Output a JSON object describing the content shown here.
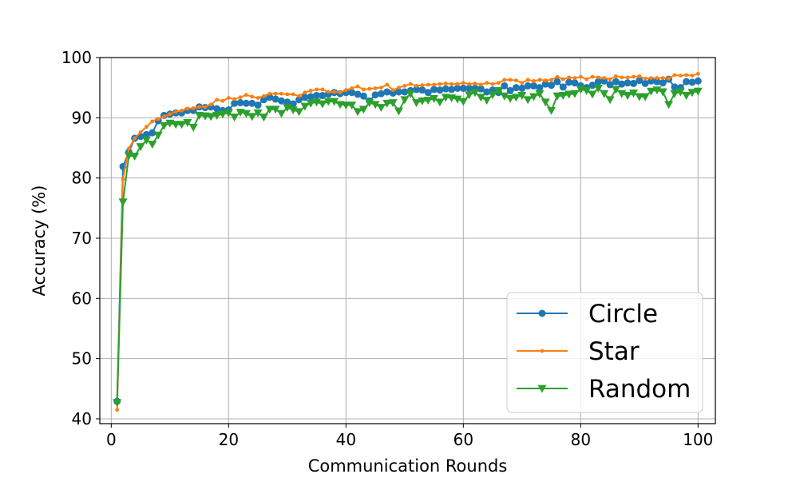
{
  "chart_data": {
    "type": "line",
    "title": "",
    "xlabel": "Communication Rounds",
    "ylabel": "Accuracy (%)",
    "xlim": [
      -1.95,
      102.95
    ],
    "ylim": [
      39.2,
      100
    ],
    "xticks": [
      0,
      20,
      40,
      60,
      80,
      100
    ],
    "yticks": [
      40,
      50,
      60,
      70,
      80,
      90,
      100
    ],
    "grid": true,
    "legend_position": "bottom-right",
    "x": [
      1,
      2,
      3,
      4,
      5,
      6,
      7,
      8,
      9,
      10,
      11,
      12,
      13,
      14,
      15,
      16,
      17,
      18,
      19,
      20,
      21,
      22,
      23,
      24,
      25,
      26,
      27,
      28,
      29,
      30,
      31,
      32,
      33,
      34,
      35,
      36,
      37,
      38,
      39,
      40,
      41,
      42,
      43,
      44,
      45,
      46,
      47,
      48,
      49,
      50,
      51,
      52,
      53,
      54,
      55,
      56,
      57,
      58,
      59,
      60,
      61,
      62,
      63,
      64,
      65,
      66,
      67,
      68,
      69,
      70,
      71,
      72,
      73,
      74,
      75,
      76,
      77,
      78,
      79,
      80,
      81,
      82,
      83,
      84,
      85,
      86,
      87,
      88,
      89,
      90,
      91,
      92,
      93,
      94,
      95,
      96,
      97,
      98,
      99,
      100
    ],
    "series": [
      {
        "name": "Circle",
        "color": "#1f77b4",
        "marker": "circle",
        "values": [
          42.9,
          81.9,
          84.3,
          86.6,
          86.9,
          87.2,
          87.5,
          89.5,
          90.4,
          90.6,
          90.8,
          90.8,
          91.2,
          91.2,
          91.8,
          91.7,
          91.8,
          91.5,
          91.2,
          91.3,
          92.4,
          92.5,
          92.4,
          92.4,
          92.1,
          93.0,
          93.4,
          93.1,
          92.8,
          92.6,
          92.3,
          93.0,
          93.4,
          93.5,
          93.7,
          93.7,
          93.9,
          94.2,
          94.0,
          94.2,
          94.2,
          93.9,
          93.6,
          92.8,
          93.8,
          94.0,
          94.3,
          94.1,
          94.3,
          94.3,
          94.5,
          94.7,
          94.6,
          94.2,
          94.7,
          94.6,
          94.8,
          94.7,
          94.9,
          94.9,
          94.9,
          94.9,
          94.8,
          94.3,
          94.6,
          94.2,
          95.3,
          94.5,
          95.0,
          94.9,
          95.3,
          95.3,
          95.0,
          95.6,
          95.4,
          96.0,
          95.1,
          95.9,
          95.8,
          95.3,
          95.0,
          95.4,
          96.0,
          96.1,
          95.5,
          96.0,
          95.6,
          95.8,
          95.7,
          96.2,
          95.7,
          96.1,
          96.0,
          95.8,
          96.4,
          95.1,
          95.0,
          96.0,
          95.9,
          96.1
        ]
      },
      {
        "name": "Star",
        "color": "#ff7f0e",
        "marker": "point",
        "values": [
          41.5,
          79.8,
          84.9,
          86.6,
          87.6,
          88.5,
          89.4,
          89.8,
          90.2,
          90.6,
          91.0,
          91.2,
          91.5,
          91.6,
          91.8,
          91.8,
          92.2,
          93.0,
          92.8,
          93.3,
          93.1,
          93.4,
          93.8,
          93.5,
          93.3,
          93.6,
          94.0,
          94.0,
          94.0,
          93.9,
          93.9,
          93.6,
          94.2,
          94.5,
          94.7,
          94.7,
          94.3,
          94.3,
          94.2,
          94.6,
          94.9,
          95.2,
          94.7,
          94.8,
          94.9,
          95.0,
          95.5,
          94.6,
          95.0,
          95.3,
          95.6,
          95.3,
          95.4,
          95.5,
          95.5,
          95.6,
          95.7,
          95.6,
          95.6,
          95.8,
          95.6,
          95.7,
          95.5,
          95.8,
          95.6,
          95.8,
          96.3,
          96.3,
          96.2,
          95.8,
          96.3,
          96.1,
          96.3,
          96.2,
          96.3,
          96.8,
          96.4,
          96.7,
          96.6,
          96.8,
          96.4,
          96.8,
          96.7,
          96.6,
          96.4,
          96.9,
          96.7,
          96.7,
          96.8,
          96.9,
          96.5,
          96.6,
          96.6,
          96.6,
          96.5,
          97.1,
          97.0,
          97.1,
          97.0,
          97.3
        ]
      },
      {
        "name": "Random",
        "color": "#2ca02c",
        "marker": "triangle-down",
        "values": [
          42.7,
          76.0,
          83.7,
          83.6,
          85.2,
          86.3,
          85.6,
          87.1,
          88.7,
          89.1,
          88.9,
          88.9,
          89.2,
          88.4,
          90.4,
          90.3,
          90.2,
          90.4,
          90.6,
          90.8,
          90.1,
          90.9,
          90.7,
          90.2,
          90.8,
          90.1,
          91.4,
          91.4,
          90.7,
          91.7,
          91.3,
          91.0,
          91.9,
          92.4,
          92.6,
          92.3,
          92.7,
          92.7,
          92.2,
          92.1,
          92.1,
          91.0,
          91.4,
          92.5,
          92.2,
          91.7,
          92.4,
          92.5,
          91.1,
          93.0,
          94.0,
          92.5,
          92.8,
          92.9,
          93.2,
          92.6,
          93.4,
          93.3,
          93.1,
          92.7,
          93.8,
          94.2,
          93.4,
          92.9,
          93.8,
          94.5,
          93.6,
          93.2,
          93.4,
          93.7,
          93.0,
          93.5,
          94.0,
          92.6,
          91.2,
          93.6,
          93.7,
          93.9,
          94.0,
          94.7,
          94.5,
          93.9,
          94.9,
          94.0,
          93.0,
          94.7,
          94.0,
          93.7,
          94.1,
          93.5,
          93.5,
          94.4,
          94.6,
          94.3,
          92.2,
          94.0,
          94.3,
          93.7,
          94.2,
          94.4
        ]
      }
    ]
  }
}
